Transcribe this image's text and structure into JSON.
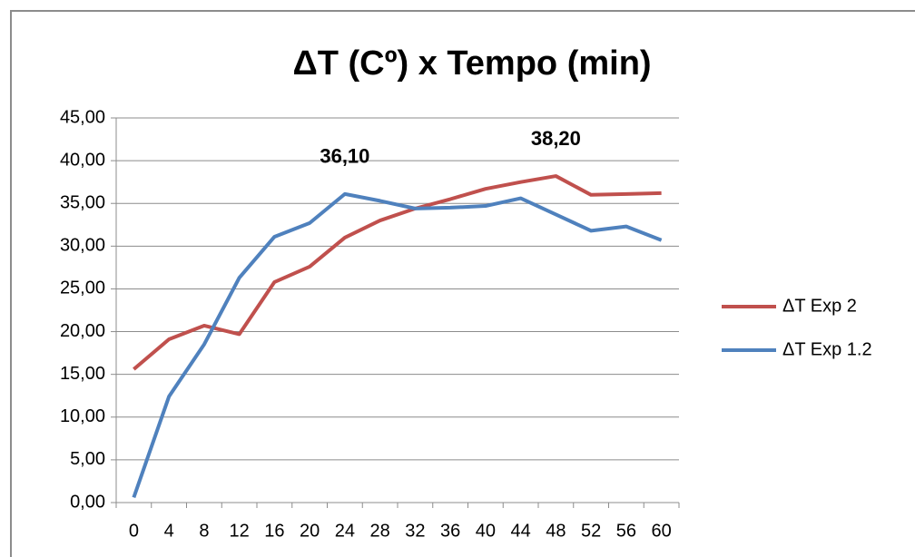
{
  "chart_data": {
    "type": "line",
    "title": "ΔT (Cº) x Tempo (min)",
    "categories": [
      "0",
      "4",
      "8",
      "12",
      "16",
      "20",
      "24",
      "28",
      "32",
      "36",
      "40",
      "44",
      "48",
      "52",
      "56",
      "60"
    ],
    "series": [
      {
        "name": "ΔT Exp 2",
        "color": "#c0504d",
        "values": [
          15.6,
          19.1,
          20.7,
          19.7,
          25.8,
          27.6,
          31.0,
          33.0,
          34.4,
          35.5,
          36.7,
          37.5,
          38.2,
          36.0,
          36.1,
          36.2
        ],
        "value_labels": [
          null,
          null,
          null,
          null,
          null,
          null,
          null,
          null,
          null,
          null,
          null,
          null,
          "38,20",
          null,
          null,
          null
        ]
      },
      {
        "name": "ΔT Exp 1.2",
        "color": "#4f81bd",
        "values": [
          0.6,
          12.4,
          18.5,
          26.3,
          31.1,
          32.7,
          36.1,
          35.3,
          34.4,
          34.5,
          34.7,
          35.6,
          33.7,
          31.8,
          32.3,
          30.7
        ],
        "value_labels": [
          null,
          null,
          null,
          null,
          null,
          null,
          "36,10",
          null,
          null,
          null,
          null,
          null,
          null,
          null,
          null,
          null
        ]
      }
    ],
    "ylim": [
      0,
      45
    ],
    "yticks": [
      {
        "value": 0,
        "label": "0,00"
      },
      {
        "value": 5,
        "label": "5,00"
      },
      {
        "value": 10,
        "label": "10,00"
      },
      {
        "value": 15,
        "label": "15,00"
      },
      {
        "value": 20,
        "label": "20,00"
      },
      {
        "value": 25,
        "label": "25,00"
      },
      {
        "value": 30,
        "label": "30,00"
      },
      {
        "value": 35,
        "label": "35,00"
      },
      {
        "value": 40,
        "label": "40,00"
      },
      {
        "value": 45,
        "label": "45,00"
      }
    ],
    "grid": true,
    "legend": "right"
  }
}
